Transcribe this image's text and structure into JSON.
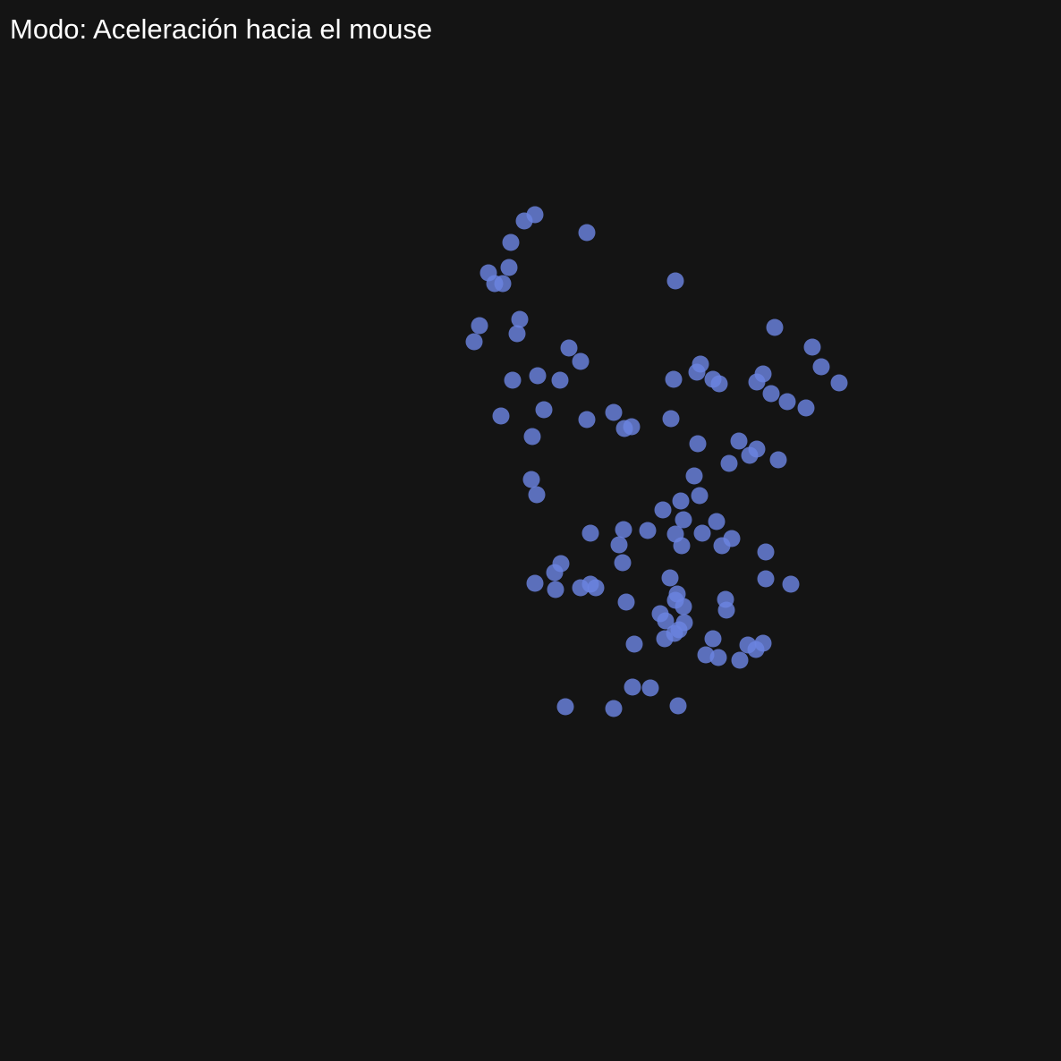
{
  "hud": {
    "mode_text": "Modo: Aceleración hacia el mouse"
  },
  "colors": {
    "background": "#141414",
    "text": "#ffffff",
    "particle": "#6b84e0"
  }
}
